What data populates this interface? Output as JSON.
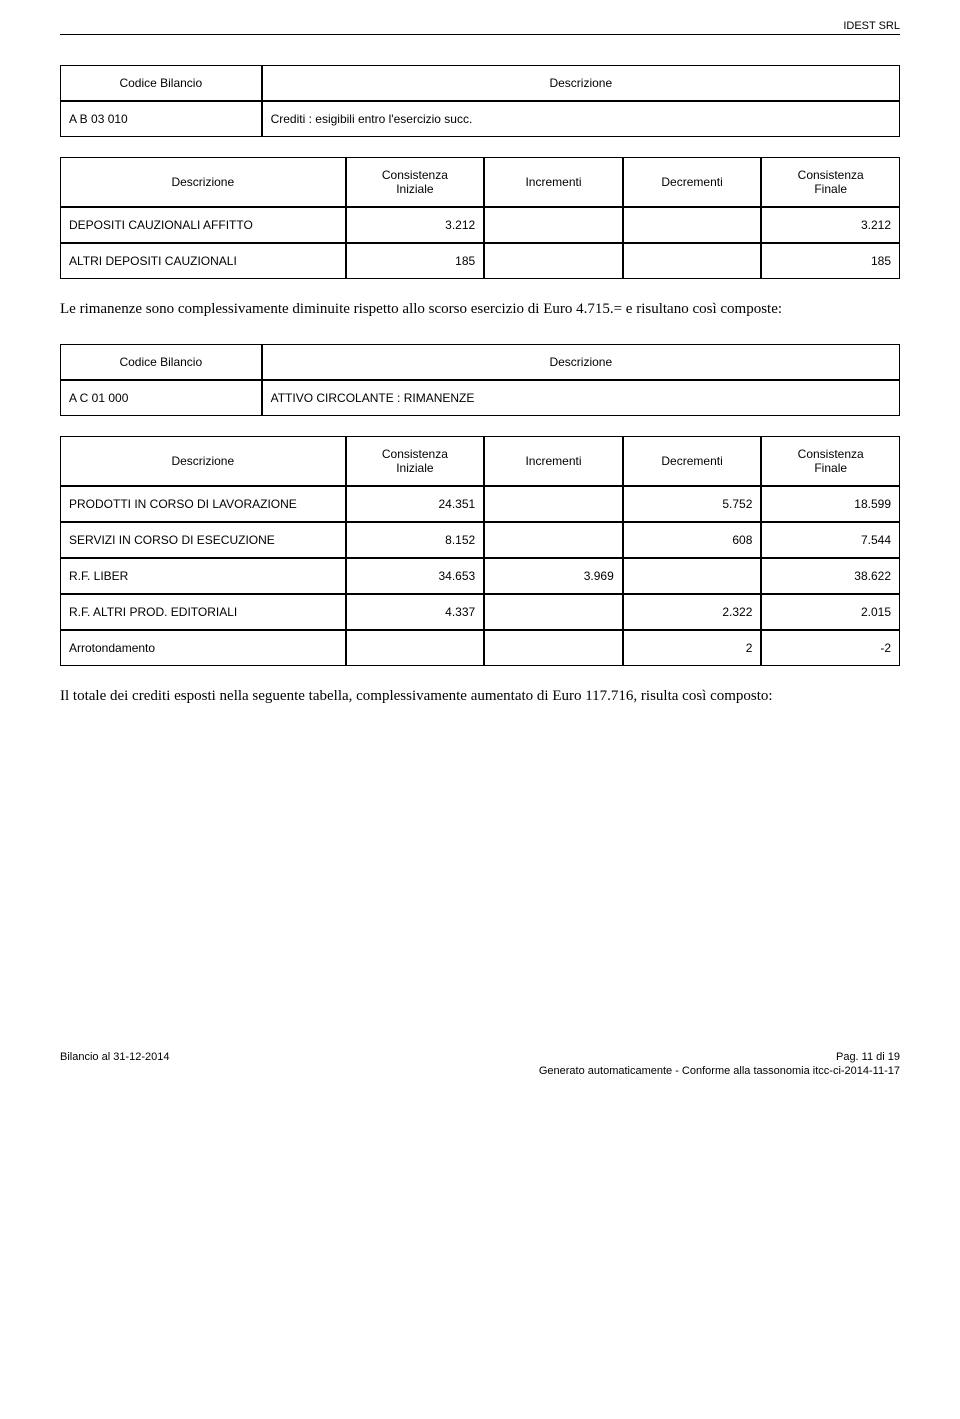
{
  "header": {
    "company": "IDEST SRL"
  },
  "table1": {
    "headers": {
      "codice": "Codice Bilancio",
      "descrizione": "Descrizione"
    },
    "row": {
      "code": "A B 03 010",
      "desc": "Crediti : esigibili entro l'esercizio succ."
    },
    "subheaders": {
      "descrizione": "Descrizione",
      "cons_iniz": "Consistenza\nIniziale",
      "incrementi": "Incrementi",
      "decrementi": "Decrementi",
      "cons_fin": "Consistenza\nFinale"
    },
    "rows": [
      {
        "desc": "DEPOSITI CAUZIONALI AFFITTO",
        "iniz": "3.212",
        "incr": "",
        "decr": "",
        "fin": "3.212"
      },
      {
        "desc": "ALTRI DEPOSITI CAUZIONALI",
        "iniz": "185",
        "incr": "",
        "decr": "",
        "fin": "185"
      }
    ]
  },
  "para1": "Le rimanenze sono complessivamente diminuite rispetto allo scorso esercizio di Euro 4.715.= e risultano così composte:",
  "table2": {
    "headers": {
      "codice": "Codice Bilancio",
      "descrizione": "Descrizione"
    },
    "row": {
      "code": "A C 01 000",
      "desc": "ATTIVO CIRCOLANTE : RIMANENZE"
    },
    "subheaders": {
      "descrizione": "Descrizione",
      "cons_iniz": "Consistenza\nIniziale",
      "incrementi": "Incrementi",
      "decrementi": "Decrementi",
      "cons_fin": "Consistenza\nFinale"
    },
    "rows": [
      {
        "desc": "PRODOTTI IN CORSO DI LAVORAZIONE",
        "iniz": "24.351",
        "incr": "",
        "decr": "5.752",
        "fin": "18.599"
      },
      {
        "desc": "SERVIZI IN CORSO DI ESECUZIONE",
        "iniz": "8.152",
        "incr": "",
        "decr": "608",
        "fin": "7.544"
      },
      {
        "desc": "R.F. LIBER",
        "iniz": "34.653",
        "incr": "3.969",
        "decr": "",
        "fin": "38.622"
      },
      {
        "desc": "R.F. ALTRI PROD. EDITORIALI",
        "iniz": "4.337",
        "incr": "",
        "decr": "2.322",
        "fin": "2.015"
      },
      {
        "desc": "Arrotondamento",
        "iniz": "",
        "incr": "",
        "decr": "2",
        "fin": "-2"
      }
    ]
  },
  "para2": "Il totale dei crediti esposti nella seguente tabella, complessivamente aumentato di Euro 117.716, risulta così composto:",
  "footer": {
    "left": "Bilancio al 31-12-2014",
    "right1": "Pag. 11 di 19",
    "right2": "Generato automaticamente - Conforme alla tassonomia itcc-ci-2014-11-17"
  }
}
